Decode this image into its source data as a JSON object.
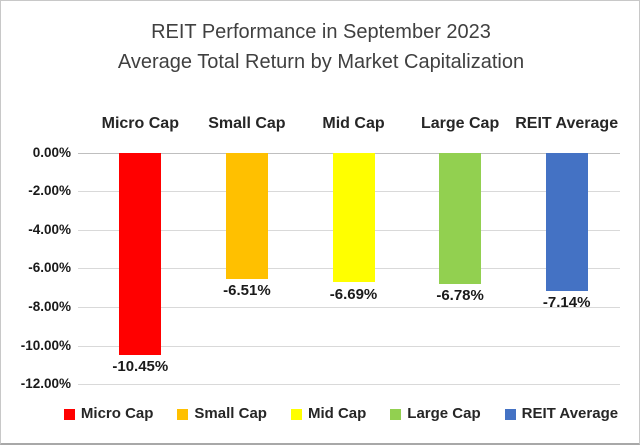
{
  "chart_data": {
    "type": "bar",
    "title": "REIT Performance in September 2023",
    "subtitle": "Average Total Return by Market Capitalization",
    "categories": [
      "Micro Cap",
      "Small Cap",
      "Mid Cap",
      "Large Cap",
      "REIT Average"
    ],
    "values": [
      -10.45,
      -6.51,
      -6.69,
      -6.78,
      -7.14
    ],
    "value_labels": [
      "-10.45%",
      "-6.51%",
      "-6.69%",
      "-6.78%",
      "-7.14%"
    ],
    "series_colors": [
      "#FF0000",
      "#FFC000",
      "#FFFF00",
      "#92D050",
      "#4472C4"
    ],
    "y_ticks": [
      "0.00%",
      "-2.00%",
      "-4.00%",
      "-6.00%",
      "-8.00%",
      "-10.00%",
      "-12.00%"
    ],
    "y_tick_values": [
      0,
      -2,
      -4,
      -6,
      -8,
      -10,
      -12
    ],
    "ylim": [
      -12,
      0
    ],
    "grid": true,
    "legend_position": "bottom",
    "legend": [
      "Micro Cap",
      "Small Cap",
      "Mid Cap",
      "Large Cap",
      "REIT Average"
    ],
    "gridline_color": "#d9d9d9",
    "title_color": "#404040",
    "text_color": "#1a1a1a"
  }
}
